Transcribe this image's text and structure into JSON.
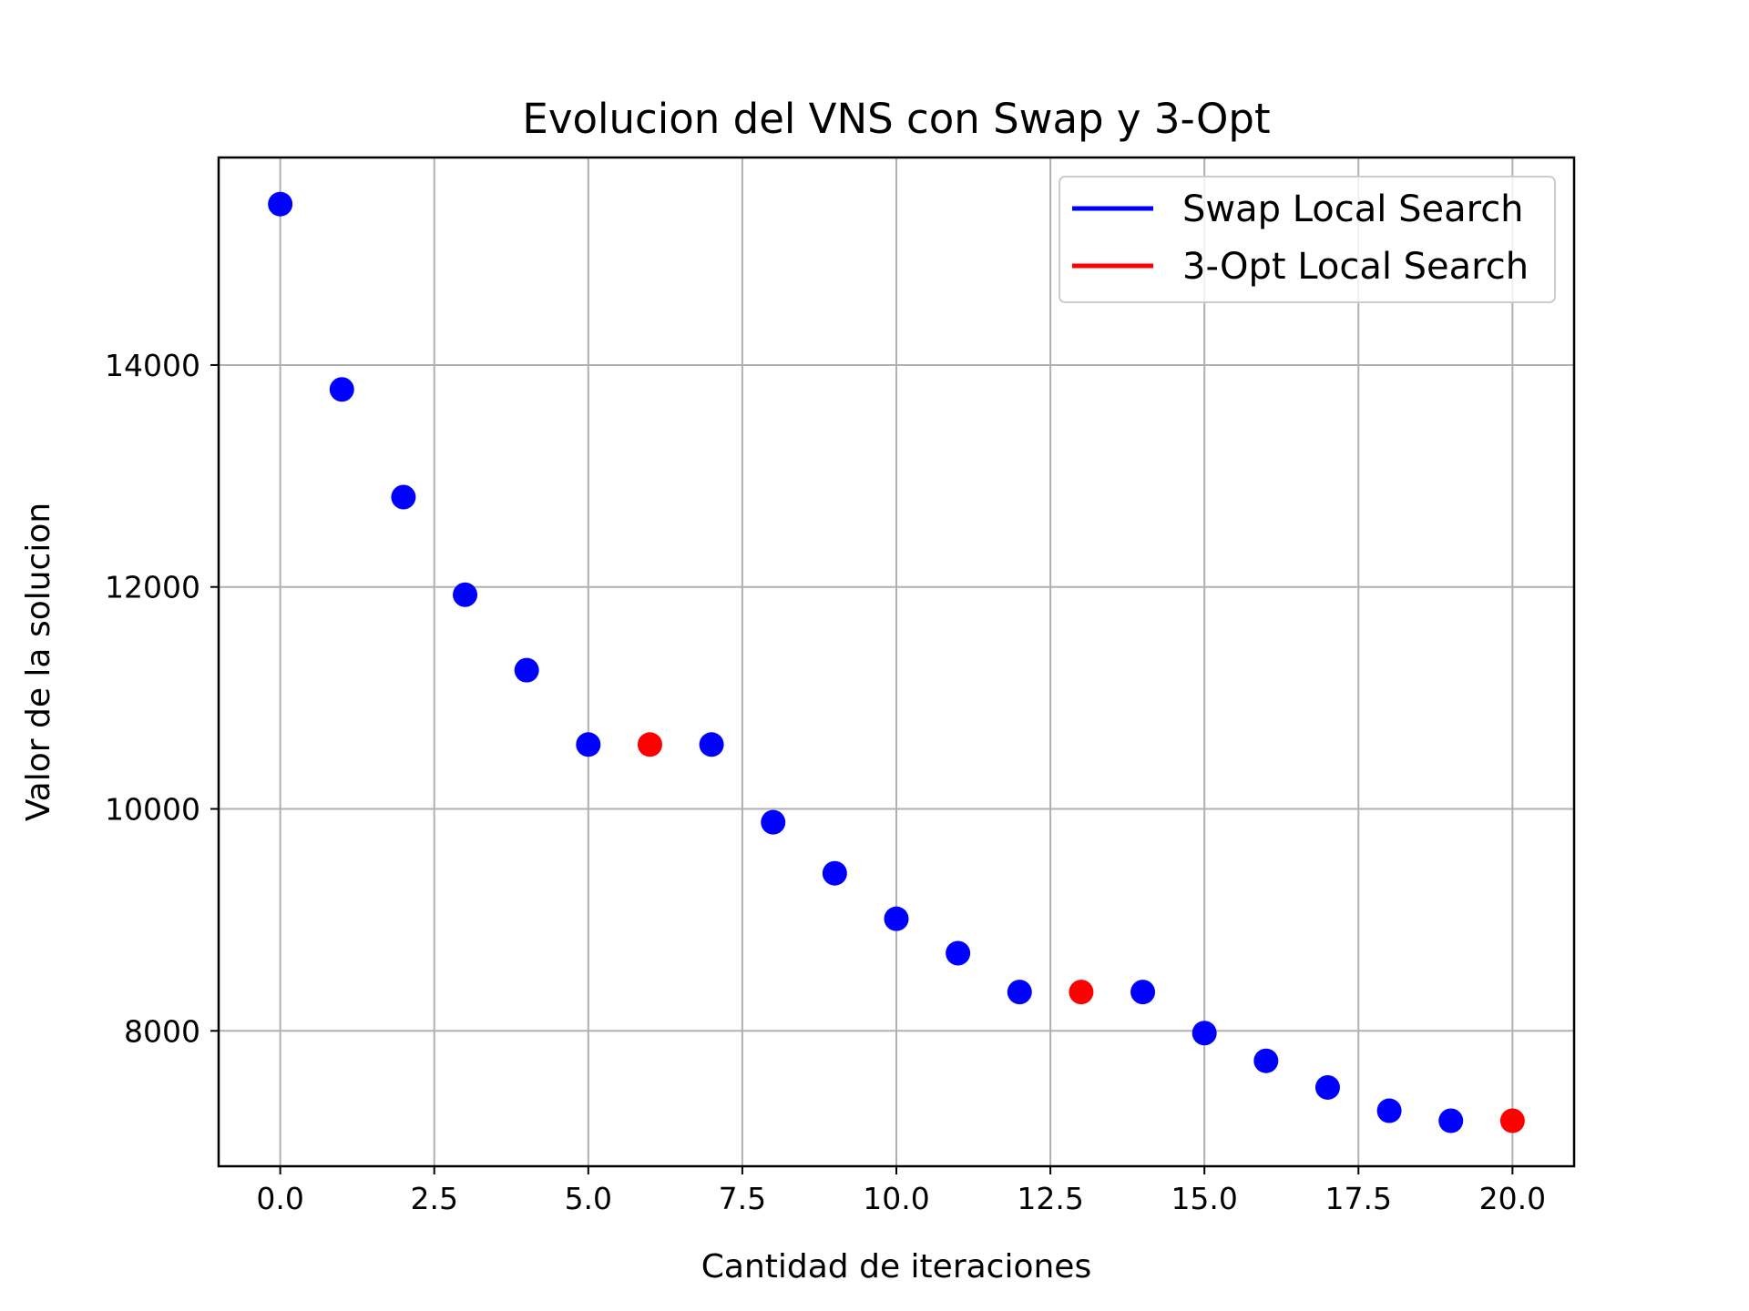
{
  "chart_data": {
    "type": "scatter",
    "title": "Evolucion del VNS con Swap y 3-Opt",
    "xlabel": "Cantidad de iteraciones",
    "ylabel": "Valor de la solucion",
    "xlim": [
      -1,
      21
    ],
    "ylim": [
      6780,
      15870
    ],
    "x_ticks": [
      0.0,
      2.5,
      5.0,
      7.5,
      10.0,
      12.5,
      15.0,
      17.5,
      20.0
    ],
    "x_tick_labels": [
      "0.0",
      "2.5",
      "5.0",
      "7.5",
      "10.0",
      "12.5",
      "15.0",
      "17.5",
      "20.0"
    ],
    "y_ticks": [
      8000,
      10000,
      12000,
      14000
    ],
    "y_tick_labels": [
      "8000",
      "10000",
      "12000",
      "14000"
    ],
    "grid": true,
    "legend_position": "top-right",
    "series": [
      {
        "name": "Swap Local Search",
        "color": "#0000ff",
        "points": [
          {
            "x": 0,
            "y": 15450
          },
          {
            "x": 1,
            "y": 13780
          },
          {
            "x": 2,
            "y": 12810
          },
          {
            "x": 3,
            "y": 11930
          },
          {
            "x": 4,
            "y": 11250
          },
          {
            "x": 5,
            "y": 10580
          },
          {
            "x": 7,
            "y": 10580
          },
          {
            "x": 8,
            "y": 9880
          },
          {
            "x": 9,
            "y": 9420
          },
          {
            "x": 10,
            "y": 9010
          },
          {
            "x": 11,
            "y": 8700
          },
          {
            "x": 12,
            "y": 8350
          },
          {
            "x": 14,
            "y": 8350
          },
          {
            "x": 15,
            "y": 7980
          },
          {
            "x": 16,
            "y": 7730
          },
          {
            "x": 17,
            "y": 7490
          },
          {
            "x": 18,
            "y": 7280
          },
          {
            "x": 19,
            "y": 7190
          }
        ]
      },
      {
        "name": "3-Opt Local Search",
        "color": "#ff0000",
        "points": [
          {
            "x": 6,
            "y": 10580
          },
          {
            "x": 13,
            "y": 8350
          },
          {
            "x": 20,
            "y": 7190
          }
        ]
      }
    ]
  }
}
